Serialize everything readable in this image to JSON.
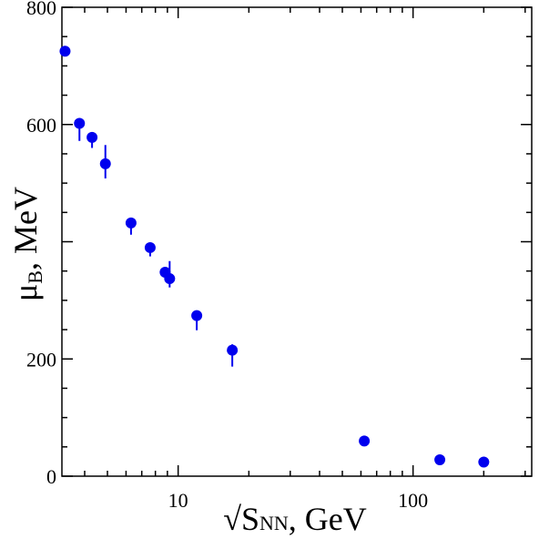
{
  "chart_data": {
    "type": "scatter",
    "x_scale": "log",
    "xlim": [
      3.2,
      320
    ],
    "ylim": [
      0,
      800
    ],
    "x_ticks": [
      {
        "value": 10,
        "label": "10"
      },
      {
        "value": 100,
        "label": "100"
      }
    ],
    "y_ticks": [
      {
        "value": 0,
        "label": "0"
      },
      {
        "value": 200,
        "label": "200"
      },
      {
        "value": 600,
        "label": "600"
      },
      {
        "value": 800,
        "label": "800"
      }
    ],
    "xlabel": {
      "prefix": "√S",
      "sub": "NN",
      "suffix": ", GeV"
    },
    "ylabel": {
      "main": "μ",
      "sub": "B",
      "suffix": ", MeV"
    },
    "marker_color": "#0000ee",
    "points": [
      {
        "x": 3.3,
        "y": 725,
        "err_lo": 0,
        "err_hi": 0
      },
      {
        "x": 3.8,
        "y": 602,
        "err_lo": 30,
        "err_hi": 0
      },
      {
        "x": 4.3,
        "y": 578,
        "err_lo": 18,
        "err_hi": 0
      },
      {
        "x": 4.9,
        "y": 533,
        "err_lo": 25,
        "err_hi": 32
      },
      {
        "x": 6.3,
        "y": 432,
        "err_lo": 20,
        "err_hi": 0
      },
      {
        "x": 7.6,
        "y": 390,
        "err_lo": 15,
        "err_hi": 0
      },
      {
        "x": 8.8,
        "y": 348,
        "err_lo": 0,
        "err_hi": 0
      },
      {
        "x": 9.2,
        "y": 337,
        "err_lo": 15,
        "err_hi": 30
      },
      {
        "x": 12.0,
        "y": 274,
        "err_lo": 25,
        "err_hi": 0
      },
      {
        "x": 17.0,
        "y": 215,
        "err_lo": 28,
        "err_hi": 10
      },
      {
        "x": 62.0,
        "y": 60,
        "err_lo": 0,
        "err_hi": 0
      },
      {
        "x": 130.0,
        "y": 28,
        "err_lo": 0,
        "err_hi": 0
      },
      {
        "x": 200.0,
        "y": 24,
        "err_lo": 0,
        "err_hi": 0
      }
    ]
  }
}
